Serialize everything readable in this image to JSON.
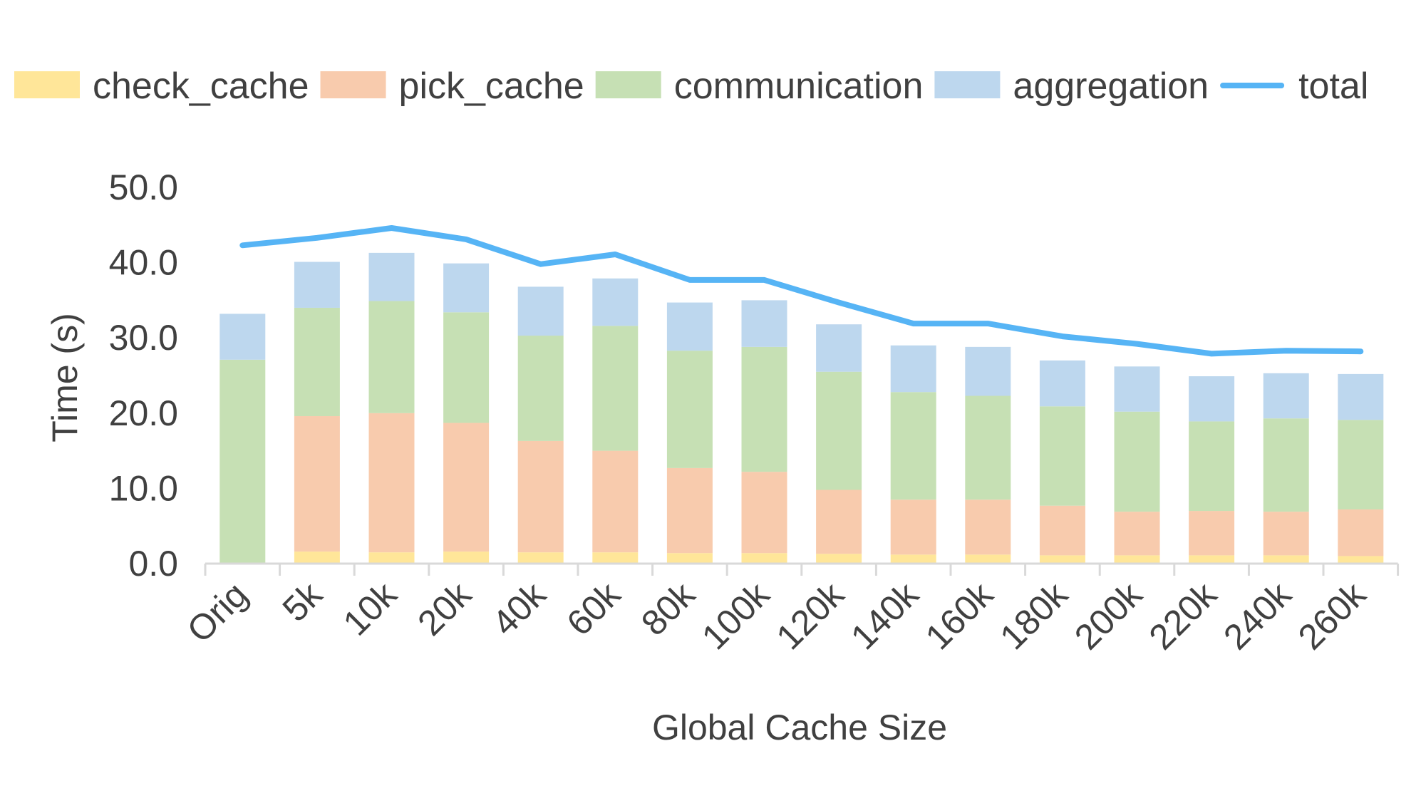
{
  "chart_data": {
    "type": "bar",
    "stacked": true,
    "xlabel": "Global Cache Size",
    "ylabel": "Time (s)",
    "ylim": [
      0,
      50
    ],
    "yticks": [
      "0.0",
      "10.0",
      "20.0",
      "30.0",
      "40.0",
      "50.0"
    ],
    "grid": false,
    "legend_position": "top",
    "categories": [
      "Orig",
      "5k",
      "10k",
      "20k",
      "40k",
      "60k",
      "80k",
      "100k",
      "120k",
      "140k",
      "160k",
      "180k",
      "200k",
      "220k",
      "240k",
      "260k"
    ],
    "series": [
      {
        "name": "check_cache",
        "kind": "bar",
        "color": "#FFE699",
        "values": [
          0,
          1.6,
          1.5,
          1.6,
          1.5,
          1.5,
          1.4,
          1.4,
          1.3,
          1.2,
          1.2,
          1.1,
          1.1,
          1.1,
          1.1,
          1.0
        ]
      },
      {
        "name": "pick_cache",
        "kind": "bar",
        "color": "#F8CBAD",
        "values": [
          0,
          18.0,
          18.5,
          17.1,
          14.8,
          13.5,
          11.3,
          10.8,
          8.5,
          7.3,
          7.3,
          6.6,
          5.8,
          5.9,
          5.8,
          6.2
        ]
      },
      {
        "name": "communication",
        "kind": "bar",
        "color": "#C6E0B4",
        "values": [
          27.1,
          14.4,
          14.9,
          14.7,
          14.0,
          16.6,
          15.6,
          16.6,
          15.7,
          14.3,
          13.8,
          13.2,
          13.3,
          11.9,
          12.4,
          11.9
        ]
      },
      {
        "name": "aggregation",
        "kind": "bar",
        "color": "#BDD7EE",
        "values": [
          6.1,
          6.1,
          6.4,
          6.5,
          6.5,
          6.3,
          6.4,
          6.2,
          6.3,
          6.2,
          6.5,
          6.1,
          6.0,
          6.0,
          6.0,
          6.1
        ]
      },
      {
        "name": "total",
        "kind": "line",
        "color": "#56B4F5",
        "values": [
          42.3,
          43.3,
          44.6,
          43.1,
          39.8,
          41.1,
          37.7,
          37.7,
          34.7,
          31.9,
          31.9,
          30.2,
          29.2,
          27.9,
          28.3,
          28.2
        ]
      }
    ]
  }
}
